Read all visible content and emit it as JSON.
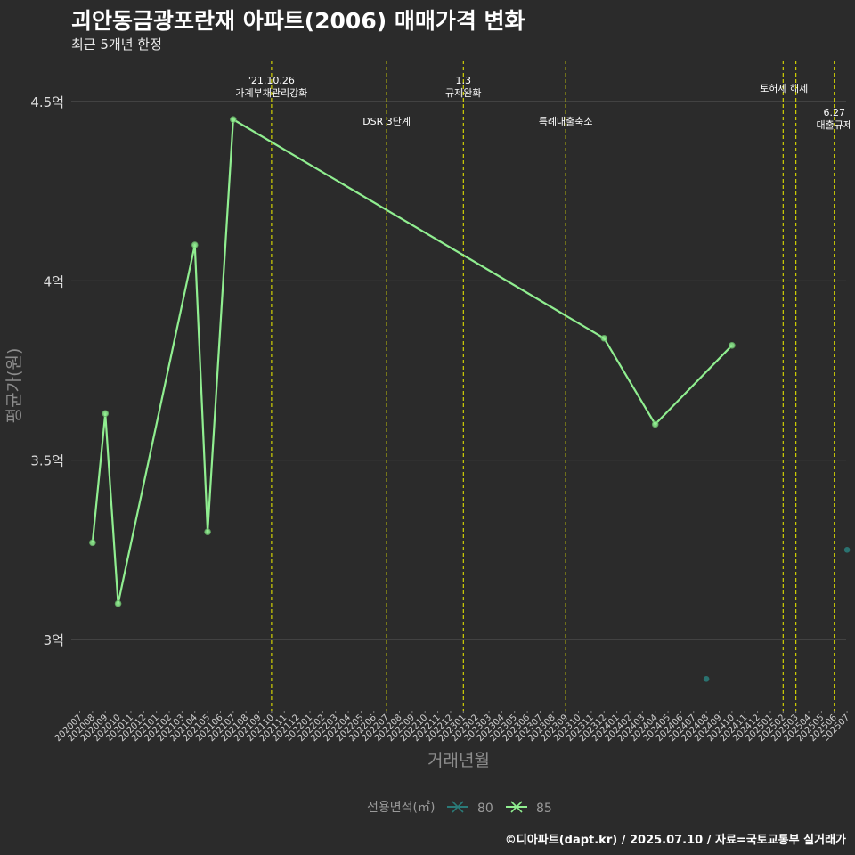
{
  "header": {
    "title": "괴안동금광포란재 아파트(2006) 매매가격 변화",
    "subtitle": "최근 5개년 한정"
  },
  "footer": {
    "source": "©디아파트(dapt.kr) / 2025.07.10 / 자료=국토교통부 실거래가"
  },
  "colors": {
    "background": "#2b2b2b",
    "grid": "#5a5a5a",
    "policy_line": "#e0e000",
    "series_80": "#2a7a78",
    "series_85": "#90ee90"
  },
  "chart_data": {
    "type": "line",
    "xlabel": "거래년월",
    "ylabel": "평균가(원)",
    "ylim": [
      2.83,
      4.6
    ],
    "yticks": [
      {
        "value": 3.0,
        "label": "3억"
      },
      {
        "value": 3.5,
        "label": "3.5억"
      },
      {
        "value": 4.0,
        "label": "4억"
      },
      {
        "value": 4.5,
        "label": "4.5억"
      }
    ],
    "grid": true,
    "legend_position": "bottom",
    "legend_title": "전용면적(㎡)",
    "categories": [
      "202007",
      "202008",
      "202009",
      "202010",
      "202011",
      "202012",
      "202101",
      "202102",
      "202103",
      "202104",
      "202105",
      "202106",
      "202107",
      "202108",
      "202109",
      "202110",
      "202111",
      "202112",
      "202201",
      "202202",
      "202203",
      "202204",
      "202205",
      "202206",
      "202207",
      "202208",
      "202209",
      "202210",
      "202211",
      "202212",
      "202301",
      "202302",
      "202303",
      "202304",
      "202305",
      "202306",
      "202307",
      "202308",
      "202309",
      "202310",
      "202311",
      "202312",
      "202401",
      "202402",
      "202403",
      "202404",
      "202405",
      "202406",
      "202407",
      "202408",
      "202409",
      "202410",
      "202411",
      "202412",
      "202501",
      "202502",
      "202503",
      "202504",
      "202505",
      "202506",
      "202507"
    ],
    "series": [
      {
        "name": "80",
        "color": "#2a7a78",
        "line": false,
        "points": [
          {
            "x": "202408",
            "y": 2.89
          },
          {
            "x": "202507",
            "y": 3.25
          }
        ]
      },
      {
        "name": "85",
        "color": "#90ee90",
        "line": true,
        "points": [
          {
            "x": "202008",
            "y": 3.27
          },
          {
            "x": "202009",
            "y": 3.63
          },
          {
            "x": "202010",
            "y": 3.1
          },
          {
            "x": "202104",
            "y": 4.1
          },
          {
            "x": "202105",
            "y": 3.3
          },
          {
            "x": "202107",
            "y": 4.45
          },
          {
            "x": "202312",
            "y": 3.84
          },
          {
            "x": "202404",
            "y": 3.6
          },
          {
            "x": "202410",
            "y": 3.82
          }
        ]
      }
    ],
    "annotations": [
      {
        "x": "202110",
        "lines": [
          "'21.10.26",
          "가계부채관리강화"
        ],
        "row": 1
      },
      {
        "x": "202207",
        "lines": [
          "DSR 3단계"
        ],
        "row": 3
      },
      {
        "x": "202301",
        "lines": [
          "1.3",
          "규제완화"
        ],
        "row": 1
      },
      {
        "x": "202309",
        "lines": [
          "특례대출축소"
        ],
        "row": 3
      },
      {
        "x": "202502",
        "lines": [
          "토허제 해제"
        ],
        "row": 2,
        "anchor": "end"
      },
      {
        "x": "202503",
        "lines": [],
        "row": 2
      },
      {
        "x": "202506",
        "lines": [
          "6.27",
          "대출규제"
        ],
        "row": 4
      }
    ]
  }
}
